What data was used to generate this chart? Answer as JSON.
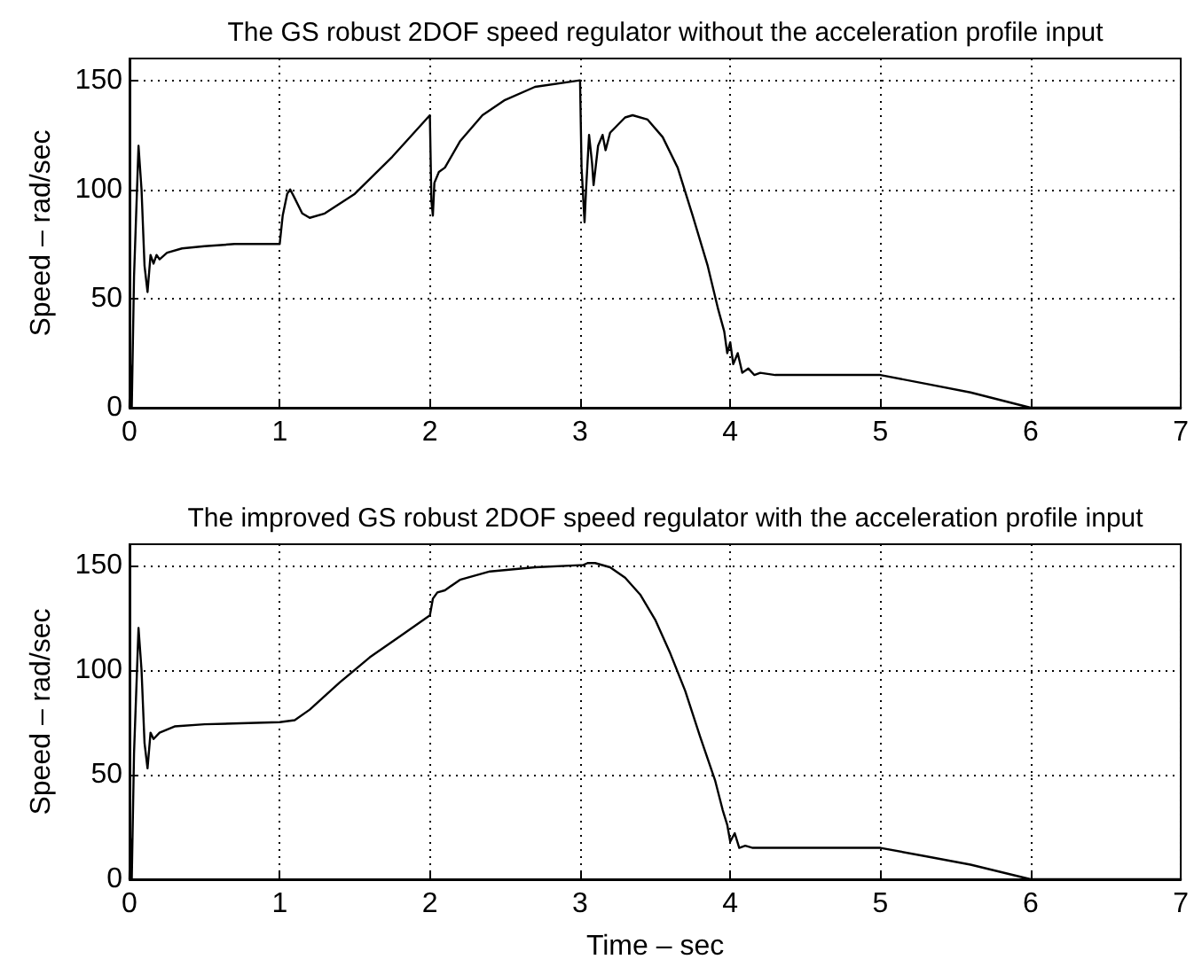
{
  "chart_data": [
    {
      "type": "line",
      "title": "The GS robust 2DOF speed regulator without the acceleration profile input",
      "ylabel": "Speed – rad/sec",
      "x": [
        0,
        0.005,
        0.015,
        0.03,
        0.06,
        0.08,
        0.1,
        0.12,
        0.14,
        0.16,
        0.18,
        0.2,
        0.25,
        0.35,
        0.5,
        0.7,
        1,
        1.02,
        1.05,
        1.07,
        1.1,
        1.15,
        1.2,
        1.3,
        1.5,
        1.75,
        2,
        2.01,
        2.02,
        2.03,
        2.06,
        2.1,
        2.2,
        2.35,
        2.5,
        2.7,
        3,
        3.01,
        3.03,
        3.04,
        3.06,
        3.08,
        3.09,
        3.12,
        3.15,
        3.17,
        3.2,
        3.3,
        3.35,
        3.45,
        3.55,
        3.65,
        3.75,
        3.85,
        3.92,
        3.96,
        3.98,
        4,
        4.02,
        4.05,
        4.08,
        4.12,
        4.16,
        4.2,
        4.3,
        5,
        5.3,
        5.6,
        6,
        7
      ],
      "series": [
        {
          "color": "#000000",
          "values": [
            0,
            20,
            0,
            60,
            120,
            100,
            65,
            53,
            70,
            66,
            70,
            68,
            71,
            73,
            74,
            75,
            75,
            88,
            98,
            100,
            96,
            89,
            87,
            89,
            98,
            115,
            134,
            95,
            88,
            103,
            108,
            110,
            122,
            134,
            141,
            147,
            150,
            110,
            85,
            100,
            125,
            112,
            102,
            120,
            125,
            118,
            126,
            133,
            134,
            132,
            124,
            110,
            88,
            65,
            45,
            35,
            25,
            30,
            20,
            25,
            16,
            18,
            15,
            16,
            15,
            15,
            11,
            7,
            0,
            0
          ]
        }
      ],
      "xlim": [
        0,
        7
      ],
      "xticks": [
        0,
        1,
        2,
        3,
        4,
        5,
        6,
        7
      ],
      "ylim": [
        0,
        160
      ],
      "yticks": [
        0,
        50,
        100,
        150
      ],
      "grid": true,
      "marker": "none",
      "line_style": "solid"
    },
    {
      "type": "line",
      "title": "The improved GS robust 2DOF speed regulator with the acceleration profile input",
      "xlabel": "Time – sec",
      "ylabel": "Speed – rad/sec",
      "x": [
        0,
        0.005,
        0.015,
        0.03,
        0.06,
        0.08,
        0.1,
        0.12,
        0.14,
        0.16,
        0.2,
        0.3,
        0.5,
        1,
        1.1,
        1.2,
        1.4,
        1.6,
        1.8,
        2,
        2.02,
        2.05,
        2.1,
        2.2,
        2.4,
        2.7,
        3,
        3.02,
        3.05,
        3.1,
        3.2,
        3.3,
        3.4,
        3.5,
        3.6,
        3.7,
        3.8,
        3.9,
        3.95,
        3.98,
        4,
        4.03,
        4.06,
        4.1,
        4.15,
        5,
        5.3,
        5.6,
        6,
        7
      ],
      "series": [
        {
          "color": "#000000",
          "values": [
            0,
            20,
            0,
            60,
            120,
            100,
            65,
            53,
            70,
            67,
            70,
            73,
            74,
            75,
            76,
            81,
            94,
            106,
            116,
            126,
            134,
            137,
            138,
            143,
            147,
            149,
            150,
            150,
            151,
            151,
            149,
            144,
            136,
            124,
            108,
            90,
            68,
            47,
            33,
            26,
            18,
            22,
            15,
            16,
            15,
            15,
            11,
            7,
            0,
            0
          ]
        }
      ],
      "xlim": [
        0,
        7
      ],
      "xticks": [
        0,
        1,
        2,
        3,
        4,
        5,
        6,
        7
      ],
      "ylim": [
        0,
        160
      ],
      "yticks": [
        0,
        50,
        100,
        150
      ],
      "grid": true,
      "marker": "none",
      "line_style": "solid"
    }
  ]
}
